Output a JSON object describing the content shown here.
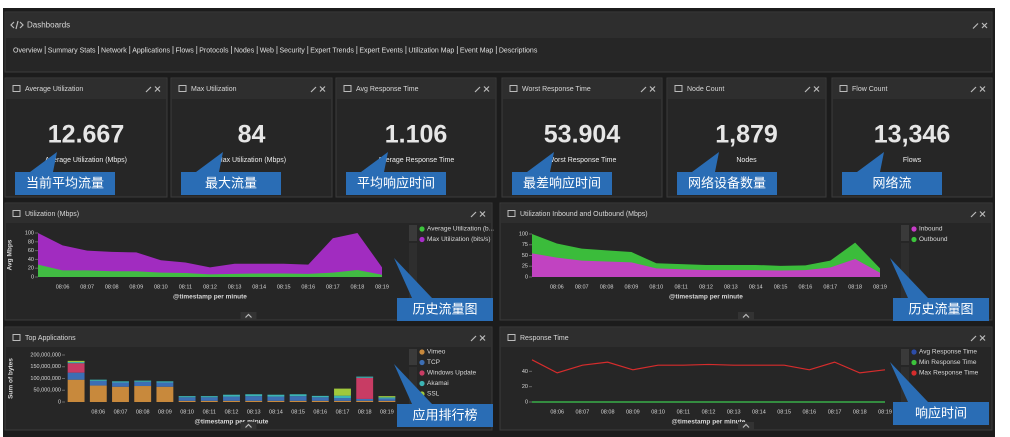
{
  "header": {
    "title": "Dashboards",
    "nav": [
      "Overview",
      "Summary Stats",
      "Network",
      "Applications",
      "Flows",
      "Protocols",
      "Nodes",
      "Web",
      "Security",
      "Expert Trends",
      "Expert Events",
      "Utilization Map",
      "Event Map",
      "Descriptions"
    ]
  },
  "metrics": [
    {
      "title": "Average Utilization",
      "value": "12.667",
      "label": "Average Utilization (Mbps)",
      "annotation": "当前平均流量"
    },
    {
      "title": "Max Utilization",
      "value": "84",
      "label": "Max Utilization (Mbps)",
      "annotation": "最大流量"
    },
    {
      "title": "Avg Response Time",
      "value": "1.106",
      "label": "Average Response Time",
      "annotation": "平均响应时间"
    },
    {
      "title": "Worst Response Time",
      "value": "53.904",
      "label": "Worst Response Time",
      "annotation": "最差响应时间"
    },
    {
      "title": "Node Count",
      "value": "1,879",
      "label": "Nodes",
      "annotation": "网络设备数量"
    },
    {
      "title": "Flow Count",
      "value": "13,346",
      "label": "Flows",
      "annotation": "网络流"
    }
  ],
  "charts": [
    {
      "type": "area",
      "title": "Utilization (Mbps)",
      "ylabel": "Avg Mbps",
      "xlabel": "@timestamp per minute",
      "annotation": "历史流量图",
      "categories": [
        null,
        "08:06",
        "08:07",
        "08:08",
        "08:09",
        "08:10",
        "08:11",
        "08:12",
        "08:13",
        "08:14",
        "08:15",
        "08:16",
        "08:17",
        "08:18",
        "08:19"
      ],
      "series": [
        {
          "name": "Average Utilization (b...",
          "color": "#3cc43c",
          "values": [
            28,
            15,
            15,
            13,
            13,
            10,
            9,
            6,
            7,
            8,
            8,
            7,
            10,
            16,
            5
          ]
        },
        {
          "name": "Max Utilization (bits/s)",
          "color": "#a82cc8",
          "values": [
            100,
            72,
            60,
            57,
            56,
            38,
            33,
            22,
            30,
            30,
            30,
            28,
            88,
            100,
            22
          ]
        }
      ],
      "ylim": [
        0,
        100
      ],
      "yticks": [
        0,
        20,
        40,
        60,
        80,
        100
      ],
      "grid": false
    },
    {
      "type": "area",
      "title": "Utilization Inbound and Outbound (Mbps)",
      "xlabel": "@timestamp per minute",
      "annotation": "历史流量图",
      "categories": [
        null,
        "08:06",
        "08:07",
        "08:08",
        "08:09",
        "08:10",
        "08:11",
        "08:12",
        "08:13",
        "08:14",
        "08:15",
        "08:16",
        "08:17",
        "08:18",
        "08:19"
      ],
      "series": [
        {
          "name": "Inbound",
          "color": "#c83cc8",
          "values": [
            55,
            45,
            38,
            36,
            34,
            20,
            18,
            16,
            16,
            16,
            15,
            16,
            22,
            42,
            10
          ]
        },
        {
          "name": "Outbound",
          "color": "#3cc43c",
          "values": [
            100,
            78,
            66,
            62,
            58,
            32,
            30,
            28,
            28,
            28,
            26,
            27,
            38,
            80,
            20
          ]
        }
      ],
      "ylim": [
        0,
        100
      ],
      "yticks": [
        0,
        25,
        50,
        75,
        100
      ],
      "grid": false
    },
    {
      "type": "stacked-bar",
      "title": "Top Applications",
      "ylabel": "Sum of bytes",
      "xlabel": "@timestamp per minute",
      "annotation": "应用排行榜",
      "categories": [
        null,
        "08:06",
        "08:07",
        "08:08",
        "08:09",
        "08:10",
        "08:11",
        "08:12",
        "08:13",
        "08:14",
        "08:15",
        "08:16",
        "08:17",
        "08:18",
        "08:19"
      ],
      "series": [
        {
          "name": "Vimeo",
          "color": "#c8893c",
          "values": [
            95000000,
            70000000,
            65000000,
            68000000,
            65000000,
            5000000,
            5000000,
            5000000,
            5000000,
            5000000,
            5000000,
            5000000,
            5000000,
            5000000,
            5000000
          ]
        },
        {
          "name": "TCP",
          "color": "#3c6eb4",
          "values": [
            30000000,
            20000000,
            18000000,
            18000000,
            18000000,
            15000000,
            15000000,
            18000000,
            20000000,
            18000000,
            20000000,
            15000000,
            12000000,
            8000000,
            10000000
          ]
        },
        {
          "name": "Windows Update",
          "color": "#c83c64",
          "values": [
            40000000,
            0,
            0,
            0,
            0,
            0,
            0,
            0,
            0,
            0,
            0,
            0,
            0,
            90000000,
            0
          ]
        },
        {
          "name": "Akamai",
          "color": "#3cb4b4",
          "values": [
            5000000,
            5000000,
            5000000,
            5000000,
            5000000,
            5000000,
            5000000,
            8000000,
            8000000,
            8000000,
            8000000,
            6000000,
            10000000,
            5000000,
            5000000
          ]
        },
        {
          "name": "SSL",
          "color": "#a0c83c",
          "values": [
            5000000,
            0,
            0,
            0,
            0,
            0,
            0,
            0,
            0,
            0,
            0,
            0,
            30000000,
            0,
            5000000
          ]
        }
      ],
      "ylim": [
        0,
        200000000
      ],
      "yticks": [
        0,
        {
          "value": 50000000,
          "label": "50,000,000"
        },
        {
          "value": 100000000,
          "label": "100,000,000"
        },
        {
          "value": 150000000,
          "label": "150,000,000"
        },
        {
          "value": 200000000,
          "label": "200,000,000"
        }
      ],
      "grid": false
    },
    {
      "type": "line",
      "title": "Response Time",
      "xlabel": "@timestamp per minute",
      "annotation": "响应时间",
      "categories": [
        null,
        "08:06",
        "08:07",
        "08:08",
        "08:09",
        "08:10",
        "08:11",
        "08:12",
        "08:13",
        "08:14",
        "08:15",
        "08:16",
        "08:17",
        "08:18",
        "08:19"
      ],
      "series": [
        {
          "name": "Avg Response Time",
          "color": "#2c4ca8",
          "values": [
            0,
            0,
            0,
            0,
            0,
            0,
            0,
            0,
            0,
            0,
            0,
            0,
            0,
            0,
            0
          ]
        },
        {
          "name": "Min Response Time",
          "color": "#3cc43c",
          "values": [
            0,
            0,
            0,
            0,
            0,
            0,
            0,
            0,
            0,
            0,
            0,
            0,
            0,
            0,
            0
          ]
        },
        {
          "name": "Max Response Time",
          "color": "#d62c2c",
          "values": [
            55,
            38,
            48,
            52,
            42,
            48,
            48,
            49,
            48,
            48,
            48,
            42,
            52,
            38,
            42
          ]
        }
      ],
      "ylim": [
        0,
        60
      ],
      "yticks": [
        0,
        20,
        40
      ],
      "grid": false
    }
  ]
}
